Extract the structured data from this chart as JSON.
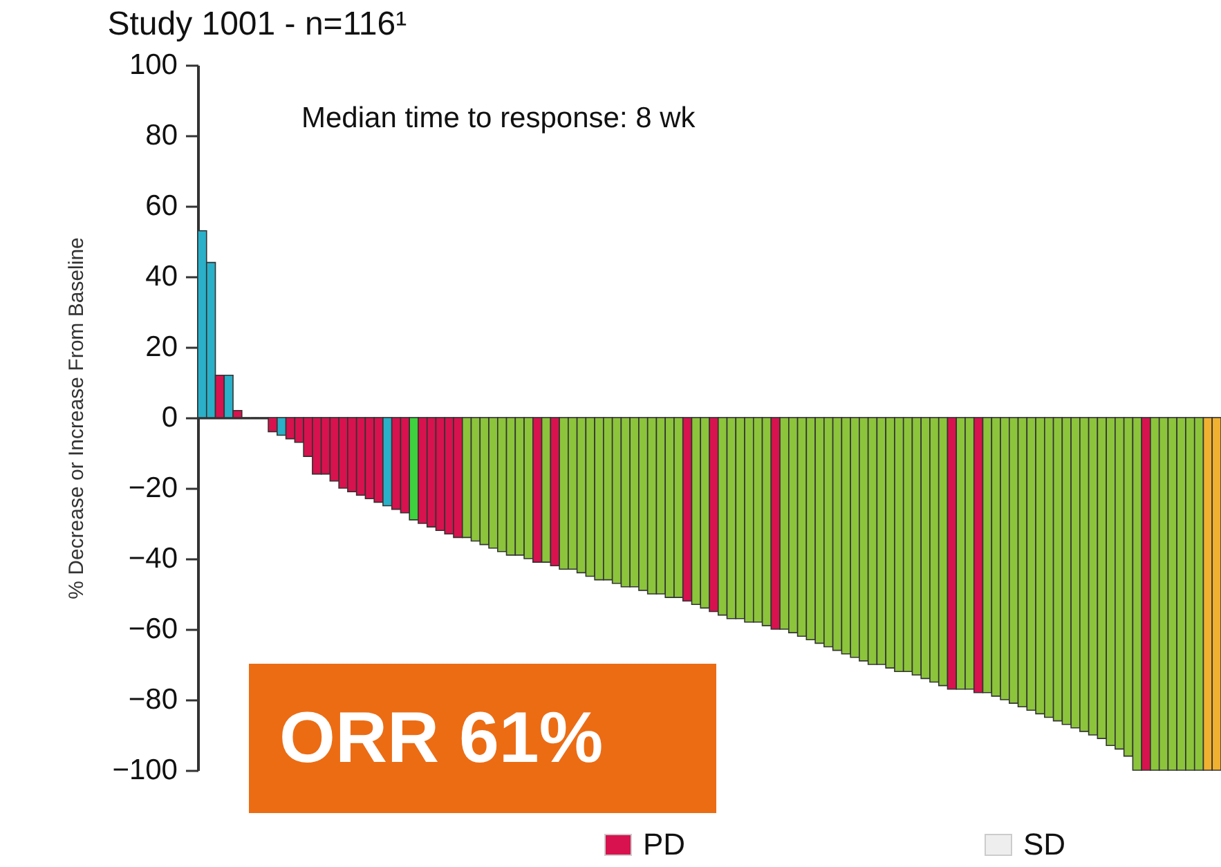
{
  "chart_data": {
    "type": "bar",
    "title": "Study 1001 - n=116¹",
    "ylabel": "% Decrease or Increase From Baseline",
    "annotations": [
      "Median time to response: 8 wk",
      "ORR 61%",
      "PD",
      "SD"
    ],
    "categories": [
      null,
      null,
      null,
      null,
      null,
      null,
      null,
      null,
      null,
      null,
      null,
      null,
      null,
      null,
      null,
      null,
      null,
      null,
      null,
      null,
      null,
      null,
      null,
      null,
      null,
      null,
      null,
      null,
      null,
      null,
      null,
      null,
      null,
      null,
      null,
      null,
      null,
      null,
      null,
      null,
      null,
      null,
      null,
      null,
      null,
      null,
      null,
      null,
      null,
      null,
      null,
      null,
      null,
      null,
      null,
      null,
      null,
      null,
      null,
      null,
      null,
      null,
      null,
      null,
      null,
      null,
      null,
      null,
      null,
      null,
      null,
      null,
      null,
      null,
      null,
      null,
      null,
      null,
      null,
      null,
      null,
      null,
      null,
      null,
      null,
      null,
      null,
      null,
      null,
      null,
      null,
      null,
      null,
      null,
      null,
      null,
      null,
      null,
      null,
      null,
      null,
      null,
      null,
      null,
      null,
      null,
      null,
      null,
      null,
      null,
      null,
      null,
      null,
      null,
      null,
      null
    ],
    "values": [
      53,
      44,
      12,
      12,
      2,
      0,
      0,
      0,
      -4,
      -5,
      -6,
      -7,
      -11,
      -16,
      -16,
      -18,
      -20,
      -21,
      -22,
      -23,
      -24,
      -25,
      -26,
      -27,
      -29,
      -30,
      -31,
      -32,
      -33,
      -34,
      -34,
      -35,
      -36,
      -37,
      -38,
      -39,
      -39,
      -40,
      -41,
      -41,
      -42,
      -43,
      -43,
      -44,
      -45,
      -46,
      -46,
      -47,
      -48,
      -48,
      -49,
      -50,
      -50,
      -51,
      -51,
      -52,
      -53,
      -54,
      -55,
      -56,
      -57,
      -57,
      -58,
      -58,
      -59,
      -60,
      -60,
      -61,
      -62,
      -63,
      -64,
      -65,
      -66,
      -67,
      -68,
      -69,
      -70,
      -70,
      -71,
      -72,
      -72,
      -73,
      -74,
      -75,
      -76,
      -77,
      -77,
      -77,
      -78,
      -78,
      -79,
      -80,
      -81,
      -82,
      -83,
      -84,
      -85,
      -86,
      -87,
      -88,
      -89,
      -90,
      -91,
      -93,
      -94,
      -96,
      -100,
      -100,
      -100,
      -100,
      -100,
      -100,
      -100,
      -100,
      -100,
      -100
    ],
    "colors": [
      "#2ab0c8",
      "#2ab0c8",
      "#d8124e",
      "#2ab0c8",
      "#d8124e",
      "#333333",
      "#333333",
      "#333333",
      "#d8124e",
      "#2ab0c8",
      "#d8124e",
      "#d8124e",
      "#d8124e",
      "#d8124e",
      "#d8124e",
      "#d8124e",
      "#d8124e",
      "#d8124e",
      "#d8124e",
      "#d8124e",
      "#d8124e",
      "#2ab0c8",
      "#d8124e",
      "#d8124e",
      "#3ed23e",
      "#d8124e",
      "#d8124e",
      "#d8124e",
      "#d8124e",
      "#d8124e",
      "#8cc43c",
      "#8cc43c",
      "#8cc43c",
      "#8cc43c",
      "#8cc43c",
      "#8cc43c",
      "#8cc43c",
      "#8cc43c",
      "#d8124e",
      "#8cc43c",
      "#d8124e",
      "#8cc43c",
      "#8cc43c",
      "#8cc43c",
      "#8cc43c",
      "#8cc43c",
      "#8cc43c",
      "#8cc43c",
      "#8cc43c",
      "#8cc43c",
      "#8cc43c",
      "#8cc43c",
      "#8cc43c",
      "#8cc43c",
      "#8cc43c",
      "#d8124e",
      "#8cc43c",
      "#8cc43c",
      "#d8124e",
      "#8cc43c",
      "#8cc43c",
      "#8cc43c",
      "#8cc43c",
      "#8cc43c",
      "#8cc43c",
      "#d8124e",
      "#8cc43c",
      "#8cc43c",
      "#8cc43c",
      "#8cc43c",
      "#8cc43c",
      "#8cc43c",
      "#8cc43c",
      "#8cc43c",
      "#8cc43c",
      "#8cc43c",
      "#8cc43c",
      "#8cc43c",
      "#8cc43c",
      "#8cc43c",
      "#8cc43c",
      "#8cc43c",
      "#8cc43c",
      "#8cc43c",
      "#8cc43c",
      "#d8124e",
      "#8cc43c",
      "#8cc43c",
      "#d8124e",
      "#8cc43c",
      "#8cc43c",
      "#8cc43c",
      "#8cc43c",
      "#8cc43c",
      "#8cc43c",
      "#8cc43c",
      "#8cc43c",
      "#8cc43c",
      "#8cc43c",
      "#8cc43c",
      "#8cc43c",
      "#8cc43c",
      "#8cc43c",
      "#8cc43c",
      "#8cc43c",
      "#8cc43c",
      "#8cc43c",
      "#d8124e",
      "#8cc43c",
      "#8cc43c",
      "#8cc43c",
      "#8cc43c",
      "#8cc43c",
      "#8cc43c",
      "#f0b030",
      "#f0b030"
    ],
    "ylim": [
      -100,
      100
    ],
    "yticks": [
      -100,
      -80,
      -60,
      -40,
      -20,
      0,
      20,
      40,
      60,
      80,
      100
    ],
    "tick_labels": "y"
  }
}
